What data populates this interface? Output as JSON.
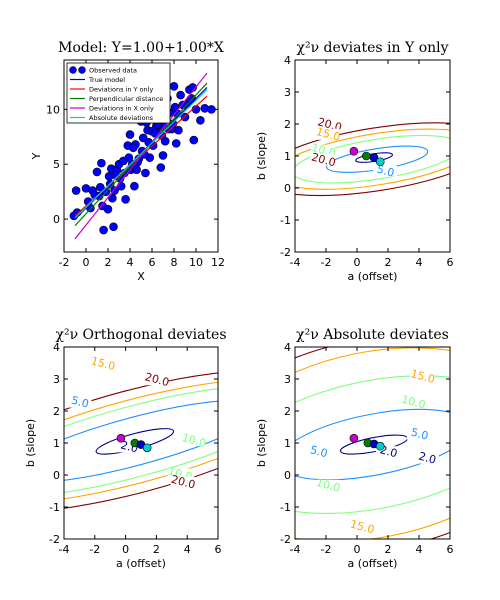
{
  "chart_data": [
    {
      "type": "scatter",
      "title": "Model: Y=1.00+1.00*X",
      "xlabel": "X",
      "ylabel": "Y",
      "xlim": [
        -2,
        12
      ],
      "ylim": [
        -3,
        14.5
      ],
      "xticks": [
        -2,
        0,
        2,
        4,
        6,
        8,
        10,
        12
      ],
      "yticks": [
        0,
        5,
        10
      ],
      "legend_position": "top-left",
      "legend": [
        {
          "label": "Observed data",
          "kind": "marker",
          "color": "#0000ff"
        },
        {
          "label": "True model",
          "kind": "line",
          "color": "#0000cc"
        },
        {
          "label": "Deviations in Y only",
          "kind": "line",
          "color": "#ff0000"
        },
        {
          "label": "Perpendicular distance",
          "kind": "line",
          "color": "#008000"
        },
        {
          "label": "Deviations in X only",
          "kind": "line",
          "color": "#cc00cc"
        },
        {
          "label": "Absolute deviations",
          "kind": "line",
          "color": "#00cccc"
        }
      ],
      "series": [
        {
          "name": "Observed data",
          "kind": "points",
          "x": [
            -1.1,
            -0.9,
            0.0,
            0.2,
            0.6,
            0.8,
            1.0,
            1.2,
            1.4,
            1.5,
            1.6,
            1.8,
            2.0,
            2.1,
            2.3,
            2.4,
            2.5,
            2.6,
            2.8,
            3.0,
            3.2,
            3.4,
            3.5,
            3.6,
            3.8,
            4.0,
            4.1,
            4.2,
            4.4,
            4.5,
            4.6,
            4.8,
            5.0,
            5.1,
            5.2,
            5.4,
            5.5,
            5.6,
            5.8,
            6.0,
            6.1,
            6.2,
            6.4,
            6.5,
            6.6,
            6.8,
            7.0,
            7.2,
            7.4,
            7.5,
            7.6,
            7.8,
            8.0,
            8.1,
            8.2,
            8.4,
            8.6,
            8.8,
            9.0,
            9.2,
            9.4,
            9.6,
            9.8,
            10.0,
            10.4,
            10.8,
            11.4,
            -0.8,
            0.4,
            1.3,
            2.2,
            3.1,
            4.7,
            5.3,
            6.9,
            7.9,
            9.5,
            2.7,
            3.9,
            5.7,
            7.1,
            8.3,
            9.7,
            4.3,
            6.3
          ],
          "y": [
            0.3,
            2.6,
            2.8,
            1.6,
            2.6,
            2.2,
            4.3,
            2.1,
            5.1,
            1.2,
            -1.0,
            2.5,
            0.9,
            3.9,
            4.6,
            1.9,
            -0.7,
            2.6,
            4.5,
            5.0,
            3.0,
            5.3,
            4.2,
            1.8,
            6.7,
            7.7,
            4.5,
            5.0,
            3.0,
            6.8,
            4.5,
            5.5,
            8.9,
            6.2,
            7.4,
            4.2,
            8.8,
            8.1,
            5.6,
            8.0,
            6.7,
            9.8,
            8.5,
            7.9,
            8.6,
            4.7,
            5.8,
            7.1,
            11.0,
            8.2,
            9.7,
            8.2,
            12.1,
            10.2,
            6.9,
            8.1,
            11.3,
            10.4,
            9.3,
            10.5,
            11.8,
            11.0,
            7.2,
            10.0,
            9.0,
            10.1,
            10.0,
            0.6,
            1.0,
            2.9,
            3.2,
            3.7,
            5.2,
            5.9,
            7.6,
            8.7,
            10.9,
            4.0,
            5.6,
            7.0,
            8.4,
            9.6,
            12.0,
            6.5,
            7.8
          ]
        },
        {
          "name": "True model",
          "kind": "line",
          "color": "#0000cc",
          "x": [
            -1,
            11
          ],
          "y": [
            0.0,
            12.0
          ]
        },
        {
          "name": "Deviations in Y only",
          "kind": "line",
          "color": "#ff0000",
          "x": [
            -1,
            11
          ],
          "y": [
            0.3,
            11.2
          ]
        },
        {
          "name": "Perpendicular distance",
          "kind": "line",
          "color": "#008000",
          "x": [
            -1,
            11
          ],
          "y": [
            -0.6,
            12.4
          ]
        },
        {
          "name": "Deviations in X only",
          "kind": "line",
          "color": "#cc00cc",
          "x": [
            -1,
            11
          ],
          "y": [
            -1.8,
            13.3
          ]
        },
        {
          "name": "Absolute deviations",
          "kind": "line",
          "color": "#00cccc",
          "x": [
            -1,
            11
          ],
          "y": [
            0.1,
            11.8
          ]
        }
      ]
    },
    {
      "type": "contour",
      "title": "χ²ν deviates in Y only",
      "xlabel": "a (offset)",
      "ylabel": "b (slope)",
      "xlim": [
        -4,
        6
      ],
      "ylim": [
        -2,
        4
      ],
      "xticks": [
        -4,
        -2,
        0,
        2,
        4,
        6
      ],
      "yticks": [
        -2,
        -1,
        0,
        1,
        2,
        3,
        4
      ],
      "contours": [
        {
          "level": 2.0,
          "color": "#00008b",
          "shape": "ellipse",
          "cx": 1.1,
          "cy": 0.95,
          "rx": 1.2,
          "ry": 0.12,
          "rot": -9
        },
        {
          "level": 5.0,
          "color": "#1e90ff",
          "shape": "ellipse",
          "cx": 1.3,
          "cy": 0.9,
          "rx": 3.3,
          "ry": 0.33,
          "rot": -9
        },
        {
          "level": 10.0,
          "color": "#7fff7f",
          "shape": "ellipse",
          "cx": 1.3,
          "cy": 0.9,
          "rx": 5.5,
          "ry": 0.62,
          "rot": -9
        },
        {
          "level": 15.0,
          "color": "#ffa500",
          "shape": "ellipse",
          "cx": 1.3,
          "cy": 0.9,
          "rx": 6.7,
          "ry": 0.8,
          "rot": -9
        },
        {
          "level": 20.0,
          "color": "#800000",
          "shape": "ellipse",
          "cx": 1.3,
          "cy": 0.9,
          "rx": 7.8,
          "ry": 0.98,
          "rot": -9
        }
      ],
      "labels": [
        {
          "text": "20.0",
          "x": -1.8,
          "y": 1.9,
          "color": "#800000"
        },
        {
          "text": "15.0",
          "x": -1.9,
          "y": 1.6,
          "color": "#ffa500"
        },
        {
          "text": "10.0",
          "x": -2.2,
          "y": 1.1,
          "color": "#7fff7f"
        },
        {
          "text": "20.0",
          "x": -2.2,
          "y": 0.8,
          "color": "#800000"
        },
        {
          "text": "5.0",
          "x": 1.8,
          "y": 0.45,
          "color": "#1e90ff"
        }
      ],
      "points": [
        {
          "x": -0.2,
          "y": 1.15,
          "color": "#cc00cc"
        },
        {
          "x": 0.6,
          "y": 1.0,
          "color": "#008000"
        },
        {
          "x": 1.1,
          "y": 0.95,
          "color": "#0000cc"
        },
        {
          "x": 1.5,
          "y": 0.82,
          "color": "#00cccc"
        }
      ]
    },
    {
      "type": "contour",
      "title": "χ²ν Orthogonal deviates",
      "xlabel": "a (offset)",
      "ylabel": "b (slope)",
      "xlim": [
        -4,
        6
      ],
      "ylim": [
        -2,
        4
      ],
      "xticks": [
        -4,
        -2,
        0,
        2,
        4,
        6
      ],
      "yticks": [
        -2,
        -1,
        0,
        1,
        2,
        3,
        4
      ],
      "contours": [
        {
          "level": 2.0,
          "color": "#00008b",
          "shape": "ellipse",
          "cx": 0.6,
          "cy": 1.05,
          "rx": 2.6,
          "ry": 0.24,
          "rot": -15
        },
        {
          "level": 5.0,
          "color": "#1e90ff",
          "shape": "ellipse",
          "cx": 0.6,
          "cy": 1.05,
          "rx": 8.5,
          "ry": 0.75,
          "rot": -15
        },
        {
          "level": 10.0,
          "color": "#7fff7f",
          "shape": "ellipse",
          "cx": 0.6,
          "cy": 1.05,
          "rx": 11,
          "ry": 1.1,
          "rot": -15
        },
        {
          "level": 15.0,
          "color": "#ffa500",
          "shape": "ellipse",
          "cx": 0.6,
          "cy": 1.05,
          "rx": 12,
          "ry": 1.3,
          "rot": -15
        },
        {
          "level": 20.0,
          "color": "#800000",
          "shape": "ellipse",
          "cx": 0.6,
          "cy": 1.05,
          "rx": 13,
          "ry": 1.6,
          "rot": -15
        }
      ],
      "labels": [
        {
          "text": "15.0",
          "x": -1.5,
          "y": 3.4,
          "color": "#ffa500"
        },
        {
          "text": "20.0",
          "x": 2.0,
          "y": 2.9,
          "color": "#800000"
        },
        {
          "text": "5.0",
          "x": -3.0,
          "y": 2.2,
          "color": "#1e90ff"
        },
        {
          "text": "10.0",
          "x": 4.4,
          "y": 1.0,
          "color": "#7fff7f"
        },
        {
          "text": "2.0",
          "x": 0.2,
          "y": 0.8,
          "color": "#00008b"
        },
        {
          "text": "10.0",
          "x": 3.5,
          "y": -0.05,
          "color": "#7fff7f"
        },
        {
          "text": "20.0",
          "x": 3.7,
          "y": -0.3,
          "color": "#800000"
        }
      ],
      "points": [
        {
          "x": -0.3,
          "y": 1.15,
          "color": "#cc00cc"
        },
        {
          "x": 0.6,
          "y": 1.0,
          "color": "#008000"
        },
        {
          "x": 1.0,
          "y": 0.95,
          "color": "#0000cc"
        },
        {
          "x": 1.4,
          "y": 0.85,
          "color": "#00cccc"
        }
      ]
    },
    {
      "type": "contour",
      "title": "χ²ν Absolute deviates",
      "xlabel": "a (offset)",
      "ylabel": "b (slope)",
      "xlim": [
        -4,
        6
      ],
      "ylim": [
        -2,
        4
      ],
      "xticks": [
        -4,
        -2,
        0,
        2,
        4,
        6
      ],
      "yticks": [
        -2,
        -1,
        0,
        1,
        2,
        3,
        4
      ],
      "contours": [
        {
          "level": 2.0,
          "color": "#00008b",
          "shape": "ellipse",
          "cx": 1.1,
          "cy": 0.95,
          "rx": 2.2,
          "ry": 0.22,
          "rot": -11
        },
        {
          "level": 5.0,
          "color": "#1e90ff",
          "shape": "ellipse",
          "cx": 1.1,
          "cy": 0.95,
          "rx": 6.3,
          "ry": 0.95,
          "rot": -11
        },
        {
          "level": 10.0,
          "color": "#7fff7f",
          "shape": "ellipse",
          "cx": 1.1,
          "cy": 0.95,
          "rx": 9.5,
          "ry": 2.0,
          "rot": -11
        },
        {
          "level": 15.0,
          "color": "#ffa500",
          "shape": "ellipse",
          "cx": 1.1,
          "cy": 0.95,
          "rx": 11,
          "ry": 2.9,
          "rot": -11
        },
        {
          "level": 20.0,
          "color": "#800000",
          "shape": "ellipse",
          "cx": 1.1,
          "cy": 0.95,
          "rx": 12.5,
          "ry": 3.3,
          "rot": -11
        }
      ],
      "labels": [
        {
          "text": "15.0",
          "x": 4.2,
          "y": 3.0,
          "color": "#ffa500"
        },
        {
          "text": "10.0",
          "x": 3.6,
          "y": 2.2,
          "color": "#7fff7f"
        },
        {
          "text": "5.0",
          "x": 4.0,
          "y": 1.2,
          "color": "#1e90ff"
        },
        {
          "text": "5.0",
          "x": -2.5,
          "y": 0.65,
          "color": "#1e90ff"
        },
        {
          "text": "2.0",
          "x": 2.0,
          "y": 0.65,
          "color": "#00008b"
        },
        {
          "text": "2.0",
          "x": 4.5,
          "y": 0.45,
          "color": "#00008b"
        },
        {
          "text": "10.0",
          "x": -1.9,
          "y": -0.4,
          "color": "#7fff7f"
        },
        {
          "text": "15.0",
          "x": 0.3,
          "y": -1.7,
          "color": "#ffa500"
        }
      ],
      "points": [
        {
          "x": -0.2,
          "y": 1.15,
          "color": "#cc00cc"
        },
        {
          "x": 0.7,
          "y": 1.0,
          "color": "#008000"
        },
        {
          "x": 1.1,
          "y": 0.97,
          "color": "#0000cc"
        },
        {
          "x": 1.5,
          "y": 0.9,
          "color": "#00cccc"
        }
      ]
    }
  ]
}
